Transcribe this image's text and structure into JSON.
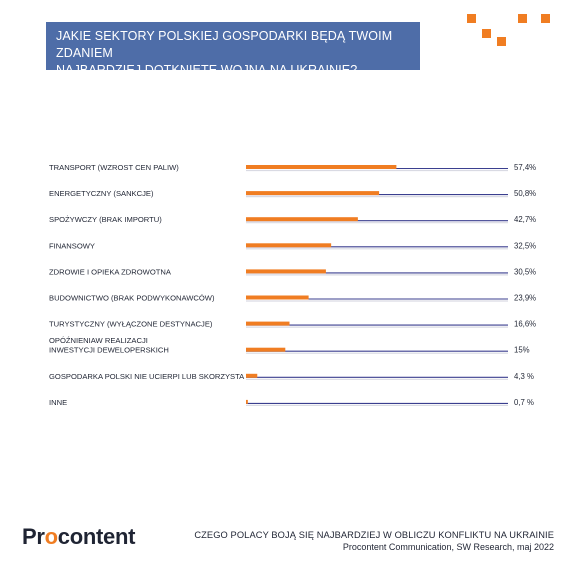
{
  "header": {
    "title_line1": "JAKIE SEKTORY POLSKIEJ GOSPODARKI BĘDĄ TWOIM ZDANIEM",
    "title_line2": "NAJBARDZIEJ DOTKNIĘTE WOJNĄ NA UKRAINIE?"
  },
  "colors": {
    "title_bg": "#4e6da8",
    "bar": "#f07d22",
    "track": "#3b3f8f",
    "accent": "#f07d22",
    "text": "#1f2433"
  },
  "chart_data": {
    "type": "bar",
    "orientation": "horizontal",
    "title": "JAKIE SEKTORY POLSKIEJ GOSPODARKI BĘDĄ TWOIM ZDANIEM NAJBARDZIEJ DOTKNIĘTE WOJNĄ NA UKRAINIE?",
    "categories": [
      [
        "TRANSPORT (WZROST CEN PALIW)"
      ],
      [
        "ENERGETYCZNY (SANKCJE)"
      ],
      [
        "SPOŻYWCZY (BRAK IMPORTU)"
      ],
      [
        "FINANSOWY"
      ],
      [
        "ZDROWIE I OPIEKA ZDROWOTNA"
      ],
      [
        "BUDOWNICTWO (BRAK PODWYKONAWCÓW)"
      ],
      [
        "TURYSTYCZNY (WYŁĄCZONE DESTYNACJE)"
      ],
      [
        "OPÓŹNIENIAW REALIZACJI",
        "INWESTYCJI DEWELOPERSKICH"
      ],
      [
        "GOSPODARKA POLSKI NIE UCIERPI LUB SKORZYSTA"
      ],
      [
        "INNE"
      ]
    ],
    "values": [
      57.4,
      50.8,
      42.7,
      32.5,
      30.5,
      23.9,
      16.6,
      15,
      4.3,
      0.7
    ],
    "value_labels": [
      "57,4%",
      "50,8%",
      "42,7%",
      "32,5%",
      "30,5%",
      "23,9%",
      "16,6%",
      "15%",
      "4,3 %",
      "0,7 %"
    ],
    "xlim": [
      0,
      100
    ],
    "legend": "none",
    "grid": false
  },
  "footer": {
    "brand_prefix": "Pr",
    "brand_o": "o",
    "brand_suffix": "content",
    "title": "CZEGO POLACY BOJĄ SIĘ NAJBARDZIEJ W OBLICZU KONFLIKTU NA UKRAINIE",
    "source": "Procontent Communication, SW Research, maj 2022"
  }
}
